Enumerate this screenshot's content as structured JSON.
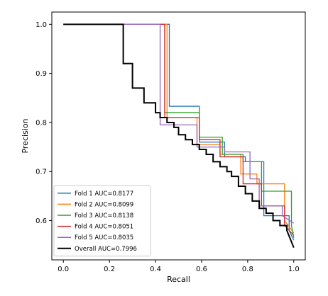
{
  "chart_data": {
    "type": "line",
    "title": "",
    "xlabel": "Recall",
    "ylabel": "Precision",
    "xlim": [
      -0.05,
      1.05
    ],
    "ylim": [
      0.52,
      1.025
    ],
    "xticks": [
      0.0,
      0.2,
      0.4,
      0.6,
      0.8,
      1.0
    ],
    "xtick_labels": [
      "0.0",
      "0.2",
      "0.4",
      "0.6",
      "0.8",
      "1.0"
    ],
    "yticks": [
      0.6,
      0.7,
      0.8,
      0.9,
      1.0
    ],
    "ytick_labels": [
      "0.6",
      "0.7",
      "0.8",
      "0.9",
      "1.0"
    ],
    "grid": false,
    "legend_position": "lower-left",
    "series": [
      {
        "name": "Fold 1 AUC=0.8177",
        "color": "#1f77b4",
        "x": [
          0.0,
          0.46,
          0.46,
          0.59,
          0.59,
          0.7,
          0.7,
          0.79,
          0.79,
          0.87,
          0.87,
          0.98,
          0.98,
          1.0
        ],
        "y": [
          1.0,
          1.0,
          0.833,
          0.833,
          0.76,
          0.76,
          0.73,
          0.73,
          0.72,
          0.72,
          0.61,
          0.61,
          0.58,
          0.56
        ]
      },
      {
        "name": "Fold 2 AUC=0.8099",
        "color": "#ff7f0e",
        "x": [
          0.0,
          0.45,
          0.45,
          0.58,
          0.58,
          0.68,
          0.68,
          0.77,
          0.77,
          0.84,
          0.84,
          0.96,
          0.96,
          1.0
        ],
        "y": [
          1.0,
          1.0,
          0.81,
          0.81,
          0.755,
          0.755,
          0.735,
          0.735,
          0.695,
          0.695,
          0.675,
          0.675,
          0.6,
          0.575
        ]
      },
      {
        "name": "Fold 3 AUC=0.8138",
        "color": "#2ca02c",
        "x": [
          0.0,
          0.44,
          0.44,
          0.59,
          0.59,
          0.69,
          0.69,
          0.78,
          0.78,
          0.86,
          0.86,
          0.99,
          0.99,
          1.0
        ],
        "y": [
          1.0,
          1.0,
          0.82,
          0.82,
          0.77,
          0.77,
          0.735,
          0.735,
          0.72,
          0.72,
          0.66,
          0.66,
          0.59,
          0.565
        ]
      },
      {
        "name": "Fold 4 AUC=0.8051",
        "color": "#d62728",
        "x": [
          0.0,
          0.44,
          0.44,
          0.59,
          0.59,
          0.68,
          0.68,
          0.78,
          0.78,
          0.86,
          0.86,
          0.96,
          0.96,
          1.0
        ],
        "y": [
          1.0,
          1.0,
          0.81,
          0.81,
          0.765,
          0.765,
          0.73,
          0.73,
          0.675,
          0.675,
          0.63,
          0.63,
          0.59,
          0.57
        ]
      },
      {
        "name": "Fold 5 AUC=0.8035",
        "color": "#9467bd",
        "x": [
          0.0,
          0.42,
          0.42,
          0.58,
          0.58,
          0.7,
          0.7,
          0.81,
          0.81,
          0.85,
          0.85,
          0.95,
          0.95,
          1.0
        ],
        "y": [
          1.0,
          1.0,
          0.795,
          0.795,
          0.75,
          0.75,
          0.74,
          0.74,
          0.685,
          0.685,
          0.63,
          0.63,
          0.61,
          0.595
        ]
      },
      {
        "name": "Overall AUC=0.7996",
        "color": "#000000",
        "x": [
          0.0,
          0.26,
          0.26,
          0.3,
          0.3,
          0.33,
          0.33,
          0.35,
          0.35,
          0.4,
          0.4,
          0.42,
          0.42,
          0.45,
          0.45,
          0.48,
          0.48,
          0.5,
          0.5,
          0.53,
          0.53,
          0.56,
          0.56,
          0.59,
          0.59,
          0.62,
          0.62,
          0.65,
          0.65,
          0.68,
          0.68,
          0.71,
          0.71,
          0.73,
          0.73,
          0.76,
          0.76,
          0.79,
          0.79,
          0.82,
          0.82,
          0.85,
          0.85,
          0.88,
          0.88,
          0.91,
          0.91,
          0.94,
          0.94,
          0.97,
          0.97,
          1.0
        ],
        "y": [
          1.0,
          1.0,
          0.92,
          0.92,
          0.87,
          0.87,
          0.87,
          0.87,
          0.84,
          0.84,
          0.82,
          0.82,
          0.81,
          0.81,
          0.8,
          0.8,
          0.79,
          0.79,
          0.775,
          0.775,
          0.765,
          0.765,
          0.755,
          0.755,
          0.745,
          0.745,
          0.735,
          0.735,
          0.72,
          0.72,
          0.71,
          0.71,
          0.7,
          0.7,
          0.69,
          0.69,
          0.67,
          0.67,
          0.655,
          0.655,
          0.64,
          0.64,
          0.625,
          0.625,
          0.615,
          0.615,
          0.6,
          0.6,
          0.59,
          0.59,
          0.58,
          0.545
        ]
      }
    ]
  }
}
